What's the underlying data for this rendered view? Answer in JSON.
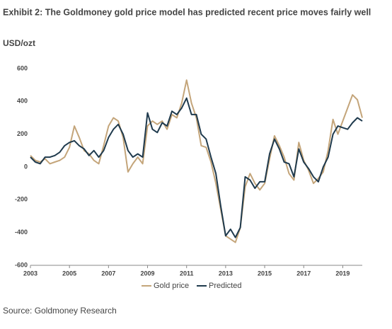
{
  "chart_data": {
    "type": "line",
    "title": "Exhibit 2: The Goldmoney gold price model has predicted recent price moves fairly well",
    "y_label": "USD/ozt",
    "source": "Source: Goldmoney Research",
    "x": [
      2003,
      2003.25,
      2003.5,
      2003.75,
      2004,
      2004.25,
      2004.5,
      2004.75,
      2005,
      2005.25,
      2005.5,
      2005.75,
      2006,
      2006.25,
      2006.5,
      2006.75,
      2007,
      2007.25,
      2007.5,
      2007.75,
      2008,
      2008.25,
      2008.5,
      2008.75,
      2009,
      2009.25,
      2009.5,
      2009.75,
      2010,
      2010.25,
      2010.5,
      2010.75,
      2011,
      2011.25,
      2011.5,
      2011.75,
      2012,
      2012.25,
      2012.5,
      2012.75,
      2013,
      2013.25,
      2013.5,
      2013.75,
      2014,
      2014.25,
      2014.5,
      2014.75,
      2015,
      2015.25,
      2015.5,
      2015.75,
      2016,
      2016.25,
      2016.5,
      2016.75,
      2017,
      2017.25,
      2017.5,
      2017.75,
      2018,
      2018.25,
      2018.5,
      2018.75,
      2019,
      2019.25,
      2019.5,
      2019.75,
      2020
    ],
    "series": [
      {
        "name": "Gold price",
        "color": "#c4a57a",
        "values": [
          70,
          40,
          30,
          50,
          20,
          30,
          40,
          60,
          120,
          250,
          180,
          100,
          80,
          40,
          20,
          130,
          250,
          300,
          280,
          180,
          -30,
          20,
          60,
          20,
          250,
          280,
          260,
          280,
          230,
          320,
          300,
          390,
          530,
          390,
          300,
          130,
          120,
          30,
          -100,
          -260,
          -420,
          -440,
          -460,
          -370,
          -120,
          -40,
          -100,
          -140,
          -100,
          50,
          190,
          130,
          60,
          -40,
          -80,
          150,
          40,
          -20,
          -100,
          -70,
          -30,
          100,
          290,
          200,
          280,
          360,
          440,
          410,
          300
        ]
      },
      {
        "name": "Predicted",
        "color": "#1f3a4d",
        "values": [
          60,
          30,
          20,
          60,
          60,
          70,
          90,
          130,
          150,
          160,
          130,
          110,
          70,
          100,
          60,
          100,
          180,
          230,
          260,
          200,
          100,
          60,
          80,
          60,
          330,
          230,
          210,
          270,
          250,
          340,
          320,
          360,
          420,
          320,
          320,
          200,
          170,
          60,
          -40,
          -240,
          -420,
          -380,
          -430,
          -370,
          -60,
          -80,
          -130,
          -90,
          -90,
          80,
          170,
          110,
          30,
          20,
          -60,
          110,
          30,
          -10,
          -60,
          -90,
          0,
          60,
          200,
          250,
          240,
          230,
          270,
          300,
          280
        ]
      }
    ],
    "xlim": [
      2003,
      2020
    ],
    "xticks": [
      2003,
      2005,
      2007,
      2009,
      2011,
      2013,
      2015,
      2017,
      2019
    ],
    "ylim": [
      -600,
      600
    ],
    "yticks": [
      -600,
      -400,
      -200,
      0,
      200,
      400,
      600
    ],
    "grid": false,
    "legend": "bottom"
  }
}
